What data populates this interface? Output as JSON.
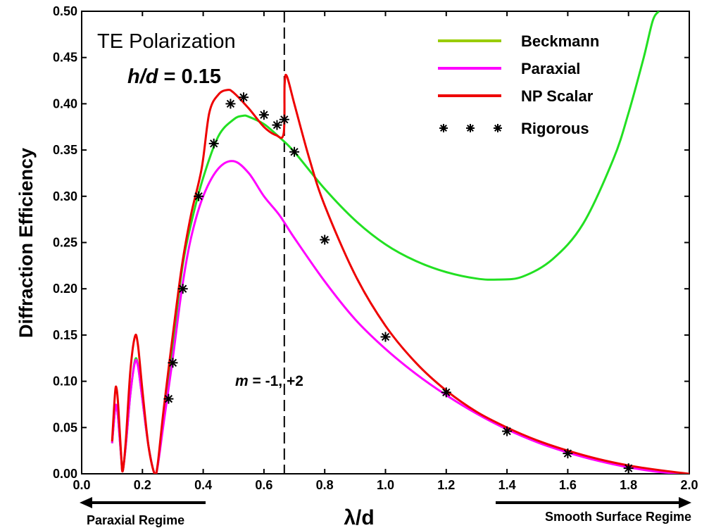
{
  "chart_data": {
    "type": "line",
    "title": "",
    "ylabel": "Diffraction Efficiency",
    "xlabel": "λ/d",
    "xlim": [
      0.0,
      2.0
    ],
    "ylim": [
      0.0,
      0.5
    ],
    "xticks": [
      "0.0",
      "0.2",
      "0.4",
      "0.6",
      "0.8",
      "1.0",
      "1.2",
      "1.4",
      "1.6",
      "1.8",
      "2.0"
    ],
    "yticks": [
      "0.00",
      "0.05",
      "0.10",
      "0.15",
      "0.20",
      "0.25",
      "0.30",
      "0.35",
      "0.40",
      "0.45",
      "0.50"
    ],
    "grid": false,
    "legend_position": "top-right",
    "annotations": {
      "polarization": "TE Polarization",
      "ratio_label_italic": "h/d",
      "ratio_label_value": " = 0.15",
      "order_label_italic": "m",
      "order_label_value": " = -1, +2",
      "cutoff_x": 0.667
    },
    "regimes": {
      "left": "Paraxial Regime",
      "right": "Smooth Surface Regime"
    },
    "series": [
      {
        "name": "Beckmann",
        "kind": "line",
        "color": "#22e022",
        "legend_color": "#99cc00",
        "x": [
          0.1,
          0.11,
          0.115,
          0.12,
          0.13,
          0.135,
          0.145,
          0.16,
          0.175,
          0.185,
          0.2,
          0.22,
          0.24,
          0.25,
          0.27,
          0.3,
          0.33,
          0.36,
          0.4,
          0.45,
          0.5,
          0.53,
          0.55,
          0.6,
          0.65,
          0.7,
          0.8,
          0.9,
          1.0,
          1.1,
          1.2,
          1.3,
          1.37,
          1.45,
          1.55,
          1.65,
          1.75,
          1.8,
          1.85,
          1.88,
          1.9
        ],
        "y": [
          0.033,
          0.07,
          0.073,
          0.06,
          0.018,
          0.003,
          0.03,
          0.085,
          0.122,
          0.118,
          0.08,
          0.03,
          0.0,
          0.008,
          0.06,
          0.138,
          0.22,
          0.27,
          0.32,
          0.365,
          0.383,
          0.387,
          0.386,
          0.378,
          0.364,
          0.348,
          0.308,
          0.274,
          0.248,
          0.23,
          0.218,
          0.211,
          0.21,
          0.213,
          0.232,
          0.27,
          0.34,
          0.39,
          0.45,
          0.49,
          0.5
        ]
      },
      {
        "name": "Paraxial",
        "kind": "line",
        "color": "#ff00ff",
        "legend_color": "#ff00ff",
        "x": [
          0.1,
          0.11,
          0.115,
          0.12,
          0.13,
          0.135,
          0.145,
          0.16,
          0.175,
          0.185,
          0.2,
          0.22,
          0.24,
          0.25,
          0.27,
          0.3,
          0.33,
          0.36,
          0.4,
          0.45,
          0.5,
          0.55,
          0.6,
          0.65,
          0.7,
          0.8,
          0.9,
          1.0,
          1.1,
          1.2,
          1.3,
          1.4,
          1.5,
          1.6,
          1.7,
          1.8,
          1.9,
          2.0
        ],
        "y": [
          0.033,
          0.07,
          0.073,
          0.06,
          0.018,
          0.003,
          0.03,
          0.085,
          0.12,
          0.117,
          0.08,
          0.03,
          0.0,
          0.008,
          0.055,
          0.125,
          0.2,
          0.255,
          0.3,
          0.33,
          0.338,
          0.325,
          0.3,
          0.28,
          0.255,
          0.208,
          0.167,
          0.135,
          0.108,
          0.085,
          0.065,
          0.048,
          0.034,
          0.023,
          0.014,
          0.007,
          0.002,
          0.0
        ]
      },
      {
        "name": "NP Scalar",
        "kind": "line",
        "color": "#ee0000",
        "legend_color": "#ee0000",
        "x": [
          0.1,
          0.11,
          0.115,
          0.12,
          0.13,
          0.135,
          0.145,
          0.16,
          0.175,
          0.185,
          0.2,
          0.22,
          0.24,
          0.25,
          0.27,
          0.3,
          0.33,
          0.36,
          0.395,
          0.42,
          0.45,
          0.48,
          0.5,
          0.55,
          0.6,
          0.64,
          0.665,
          0.668,
          0.675,
          0.7,
          0.75,
          0.8,
          0.9,
          1.0,
          1.1,
          1.2,
          1.3,
          1.4,
          1.5,
          1.6,
          1.7,
          1.8,
          1.9,
          2.0
        ],
        "y": [
          0.035,
          0.088,
          0.092,
          0.075,
          0.02,
          0.003,
          0.035,
          0.11,
          0.148,
          0.14,
          0.09,
          0.03,
          0.0,
          0.01,
          0.07,
          0.15,
          0.225,
          0.28,
          0.33,
          0.39,
          0.41,
          0.415,
          0.412,
          0.395,
          0.375,
          0.366,
          0.368,
          0.42,
          0.43,
          0.4,
          0.34,
          0.29,
          0.215,
          0.16,
          0.12,
          0.09,
          0.067,
          0.05,
          0.036,
          0.025,
          0.016,
          0.009,
          0.004,
          0.0
        ]
      },
      {
        "name": "Rigorous",
        "kind": "marker",
        "marker": "*",
        "color": "#000000",
        "legend_color": "#000000",
        "x": [
          0.286,
          0.3,
          0.333,
          0.385,
          0.435,
          0.49,
          0.533,
          0.6,
          0.643,
          0.667,
          0.7,
          0.8,
          1.0,
          1.2,
          1.4,
          1.6,
          1.8
        ],
        "y": [
          0.081,
          0.12,
          0.2,
          0.3,
          0.357,
          0.4,
          0.407,
          0.388,
          0.377,
          0.383,
          0.348,
          0.253,
          0.148,
          0.088,
          0.046,
          0.022,
          0.006
        ]
      }
    ]
  }
}
